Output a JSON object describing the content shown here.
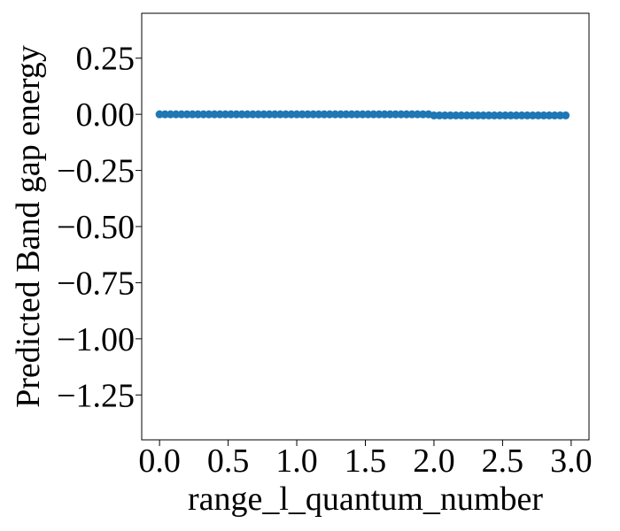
{
  "chart_data": {
    "type": "scatter",
    "title": "",
    "xlabel": "range_l_quantum_number",
    "ylabel": "Predicted Band gap energy",
    "xlim": [
      -0.13,
      3.13
    ],
    "ylim": [
      -1.45,
      0.45
    ],
    "x_ticks": [
      0.0,
      0.5,
      1.0,
      1.5,
      2.0,
      2.5,
      3.0
    ],
    "x_tick_labels": [
      "0.0",
      "0.5",
      "1.0",
      "1.5",
      "2.0",
      "2.5",
      "3.0"
    ],
    "y_ticks": [
      0.25,
      0.0,
      -0.25,
      -0.5,
      -0.75,
      -1.0,
      -1.25
    ],
    "y_tick_labels": [
      "0.25",
      "0.00",
      "−0.25",
      "−0.50",
      "−0.75",
      "−1.00",
      "−1.25"
    ],
    "grid": false,
    "marker_color": "#1f77b4",
    "series": [
      {
        "x": [
          0.0,
          0.04,
          0.08,
          0.12,
          0.16,
          0.2,
          0.24,
          0.28,
          0.32,
          0.36,
          0.4,
          0.44,
          0.48,
          0.52,
          0.56,
          0.6,
          0.64,
          0.68,
          0.72,
          0.76,
          0.8,
          0.84,
          0.88,
          0.92,
          0.96,
          1.0,
          1.04,
          1.08,
          1.12,
          1.16,
          1.2,
          1.24,
          1.28,
          1.32,
          1.36,
          1.4,
          1.44,
          1.48,
          1.52,
          1.56,
          1.6,
          1.64,
          1.68,
          1.72,
          1.76,
          1.8,
          1.84,
          1.88,
          1.92,
          1.96,
          2.0,
          2.04,
          2.08,
          2.12,
          2.16,
          2.2,
          2.24,
          2.28,
          2.32,
          2.36,
          2.4,
          2.44,
          2.48,
          2.52,
          2.56,
          2.6,
          2.64,
          2.68,
          2.72,
          2.76,
          2.8,
          2.84,
          2.88,
          2.92,
          2.96
        ],
        "y": [
          0.0,
          0.0,
          0.0,
          0.0,
          0.0,
          0.0,
          0.0,
          0.0,
          0.0,
          0.0,
          0.0,
          0.0,
          0.0,
          0.0,
          0.0,
          0.0,
          0.0,
          0.0,
          0.0,
          0.0,
          0.0,
          0.0,
          0.0,
          0.0,
          0.0,
          0.0,
          0.0,
          0.0,
          0.0,
          0.0,
          0.0,
          0.0,
          0.0,
          0.0,
          0.0,
          0.0,
          0.0,
          0.0,
          0.0,
          0.0,
          0.0,
          0.0,
          0.0,
          0.0,
          0.0,
          0.0,
          0.0,
          0.0,
          0.0,
          0.0,
          -0.005,
          -0.005,
          -0.005,
          -0.005,
          -0.005,
          -0.005,
          -0.005,
          -0.005,
          -0.005,
          -0.005,
          -0.005,
          -0.005,
          -0.005,
          -0.005,
          -0.005,
          -0.005,
          -0.005,
          -0.005,
          -0.005,
          -0.005,
          -0.005,
          -0.005,
          -0.005,
          -0.005,
          -0.005
        ]
      }
    ]
  }
}
